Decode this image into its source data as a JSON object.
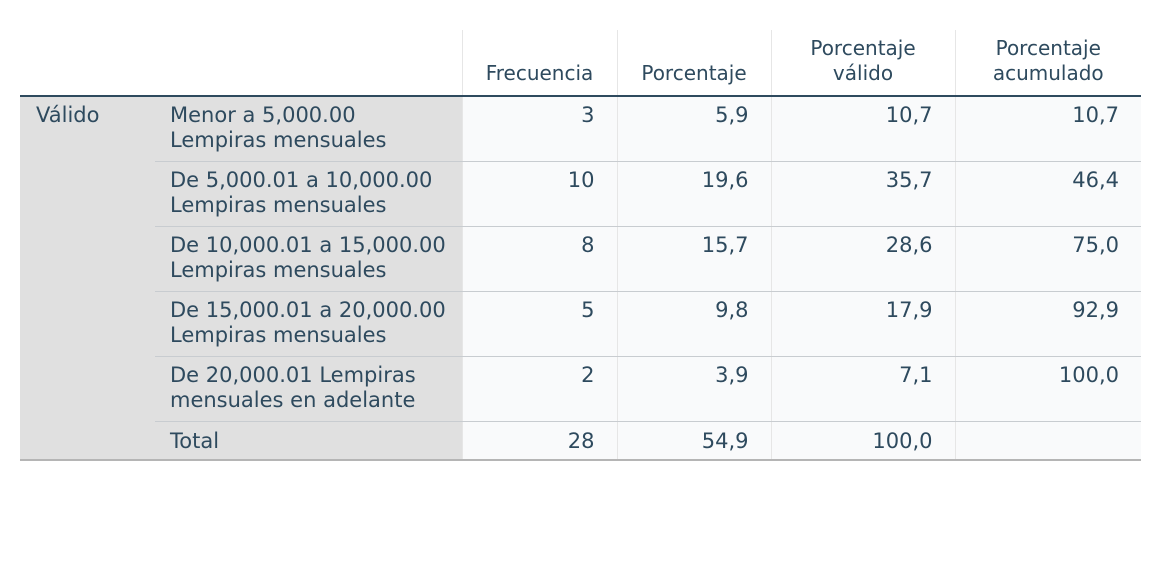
{
  "table": {
    "headers": {
      "corner": "",
      "frecuencia": "Frecuencia",
      "porcentaje": "Porcentaje",
      "porcentaje_valido": "Porcentaje válido",
      "porcentaje_acumulado": "Porcentaje acumulado"
    },
    "group_label": "Válido",
    "rows": [
      {
        "label": "Menor a 5,000.00 Lempiras mensuales",
        "frecuencia": "3",
        "porcentaje": "5,9",
        "porcentaje_valido": "10,7",
        "porcentaje_acumulado": "10,7"
      },
      {
        "label": "De 5,000.01 a 10,000.00 Lempiras mensuales",
        "frecuencia": "10",
        "porcentaje": "19,6",
        "porcentaje_valido": "35,7",
        "porcentaje_acumulado": "46,4"
      },
      {
        "label": "De 10,000.01 a 15,000.00 Lempiras mensuales",
        "frecuencia": "8",
        "porcentaje": "15,7",
        "porcentaje_valido": "28,6",
        "porcentaje_acumulado": "75,0"
      },
      {
        "label": "De 15,000.01 a 20,000.00 Lempiras mensuales",
        "frecuencia": "5",
        "porcentaje": "9,8",
        "porcentaje_valido": "17,9",
        "porcentaje_acumulado": "92,9"
      },
      {
        "label": "De 20,000.01 Lempiras mensuales en adelante",
        "frecuencia": "2",
        "porcentaje": "3,9",
        "porcentaje_valido": "7,1",
        "porcentaje_acumulado": "100,0"
      }
    ],
    "total": {
      "label": "Total",
      "frecuencia": "28",
      "porcentaje": "54,9",
      "porcentaje_valido": "100,0",
      "porcentaje_acumulado": ""
    }
  }
}
